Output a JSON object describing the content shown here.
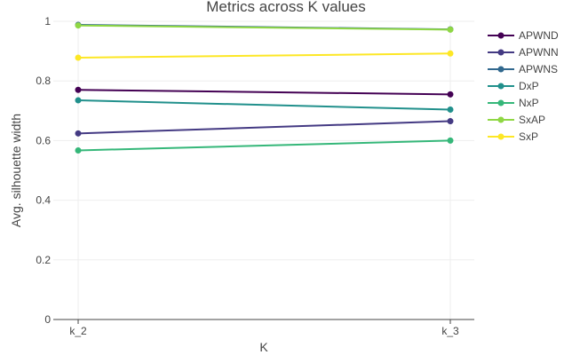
{
  "chart_data": {
    "type": "line",
    "title": "Metrics across K values",
    "xlabel": "K",
    "ylabel": "Avg. silhouette width",
    "categories": [
      "k_2",
      "k_3"
    ],
    "ylim": [
      0,
      1
    ],
    "yticks": [
      0,
      0.2,
      0.4,
      0.6,
      0.8,
      1
    ],
    "ytick_labels": [
      "0",
      "0.2",
      "0.4",
      "0.6",
      "0.8",
      "1"
    ],
    "grid": true,
    "legend_position": "right",
    "series": [
      {
        "name": "APWND",
        "values": [
          0.77,
          0.755
        ],
        "color": "#440154"
      },
      {
        "name": "APWNN",
        "values": [
          0.624,
          0.665
        ],
        "color": "#443A83"
      },
      {
        "name": "APWNS",
        "values": [
          0.988,
          0.973
        ],
        "color": "#31688E"
      },
      {
        "name": "DxP",
        "values": [
          0.735,
          0.704
        ],
        "color": "#21908C"
      },
      {
        "name": "NxP",
        "values": [
          0.567,
          0.6
        ],
        "color": "#35B779"
      },
      {
        "name": "SxAP",
        "values": [
          0.986,
          0.972
        ],
        "color": "#8FD744"
      },
      {
        "name": "SxP",
        "values": [
          0.878,
          0.892
        ],
        "color": "#FDE725"
      }
    ]
  }
}
